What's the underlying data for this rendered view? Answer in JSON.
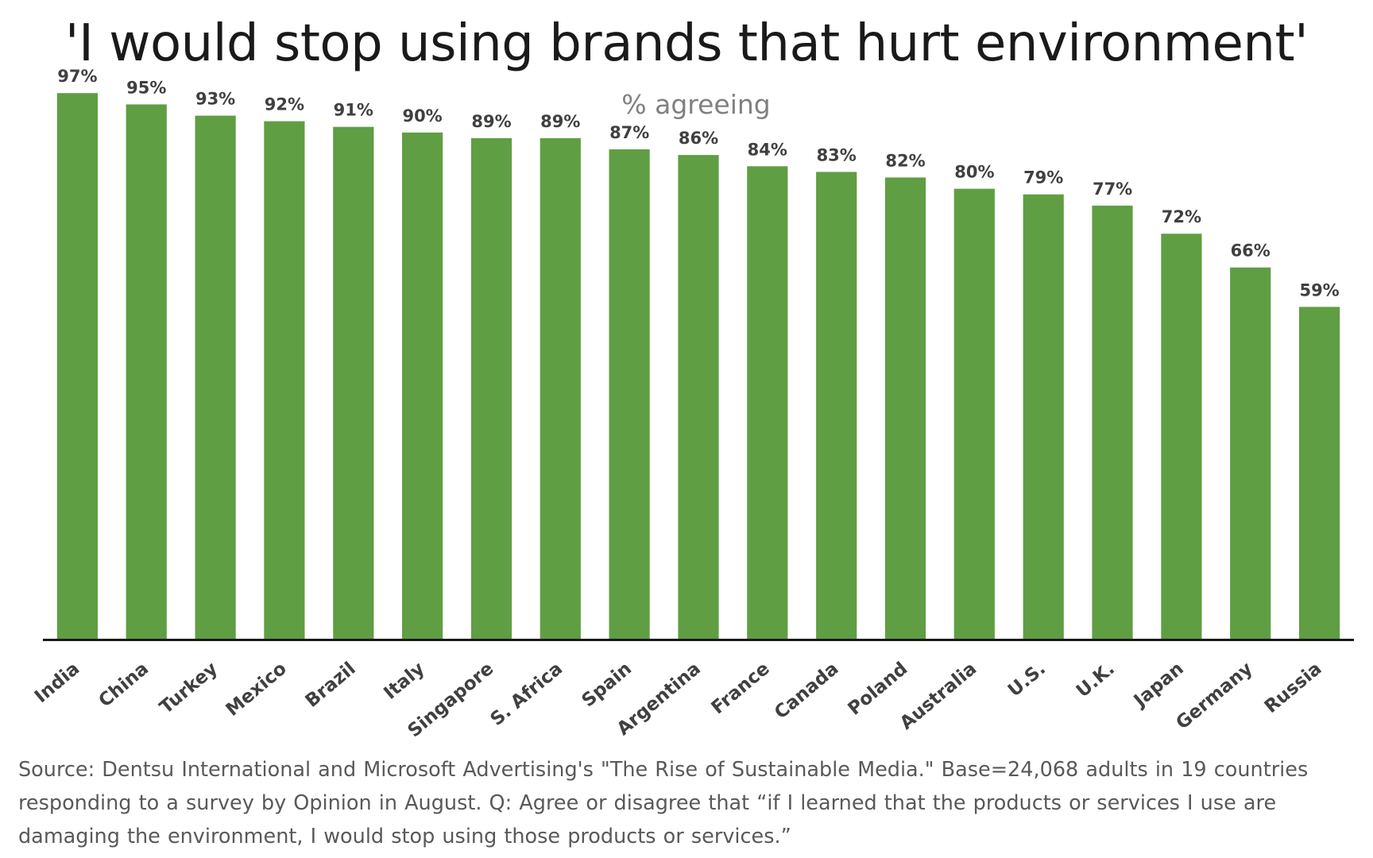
{
  "header": {
    "title": "'I would stop using brands that hurt environment'",
    "subtitle": "% agreeing"
  },
  "source_note": "Source: Dentsu International and Microsoft Advertising's \"The Rise of Sustainable Media.\" Base=24,068 adults in 19 countries responding to a survey by Opinion in August. Q: Agree or disagree that “if I learned that the products or services I use are damaging the environment, I would stop using those products or services.”",
  "colors": {
    "bar": "#5f9e43",
    "axis": "#1a1a1a",
    "label": "#404040"
  },
  "chart_data": {
    "type": "bar",
    "title": "'I would stop using brands that hurt environment'",
    "subtitle": "% agreeing",
    "categories": [
      "India",
      "China",
      "Turkey",
      "Mexico",
      "Brazil",
      "Italy",
      "Singapore",
      "S. Africa",
      "Spain",
      "Argentina",
      "France",
      "Canada",
      "Poland",
      "Australia",
      "U.S.",
      "U.K.",
      "Japan",
      "Germany",
      "Russia"
    ],
    "values": [
      97,
      95,
      93,
      92,
      91,
      90,
      89,
      89,
      87,
      86,
      84,
      83,
      82,
      80,
      79,
      77,
      72,
      66,
      59
    ],
    "data_labels": [
      "97%",
      "95%",
      "93%",
      "92%",
      "91%",
      "90%",
      "89%",
      "89%",
      "87%",
      "86%",
      "84%",
      "83%",
      "82%",
      "80%",
      "79%",
      "77%",
      "72%",
      "66%",
      "59%"
    ],
    "ylim": [
      0,
      100
    ],
    "grid": false,
    "legend": "none"
  }
}
